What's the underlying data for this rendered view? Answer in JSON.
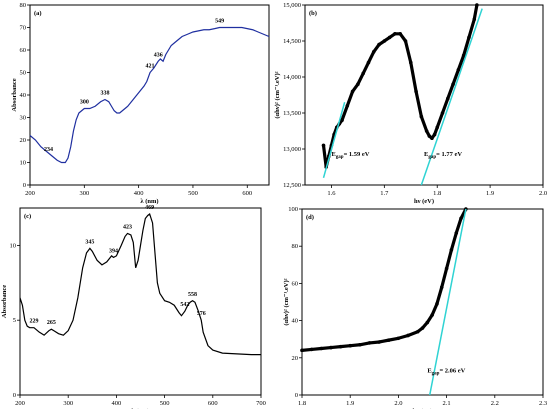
{
  "chart_data": [
    {
      "id": "a",
      "type": "line",
      "panel_label": "(a)",
      "xlabel": "λ (nm)",
      "ylabel": "Absorbance",
      "xlim": [
        200,
        640
      ],
      "ylim": [
        0,
        80
      ],
      "xticks": [
        200,
        300,
        400,
        500,
        600
      ],
      "yticks": [
        0,
        10,
        20,
        30,
        40,
        50,
        60,
        70,
        80
      ],
      "line_color": "#1f2fa0",
      "series": [
        {
          "x": [
            200,
            210,
            220,
            230,
            240,
            250,
            258,
            265,
            270,
            275,
            280,
            285,
            290,
            295,
            300,
            310,
            320,
            330,
            338,
            345,
            350,
            355,
            360,
            365,
            370,
            380,
            390,
            400,
            410,
            415,
            421,
            428,
            436,
            440,
            445,
            450,
            460,
            470,
            480,
            490,
            500,
            510,
            520,
            530,
            540,
            549,
            560,
            570,
            580,
            590,
            600,
            610,
            620,
            630,
            640
          ],
          "y": [
            22,
            20,
            17,
            15,
            13,
            11,
            10,
            10,
            12,
            17,
            24,
            29,
            32,
            33,
            34,
            34,
            35,
            37,
            38,
            37,
            35,
            33,
            32,
            32,
            33,
            35,
            38,
            41,
            44,
            46,
            50,
            52,
            55,
            56,
            55,
            58,
            62,
            64,
            66,
            67,
            68,
            68.5,
            69,
            69,
            69.5,
            70,
            70,
            70,
            70,
            70,
            69.5,
            69,
            68,
            67,
            66
          ]
        }
      ],
      "annotations": [
        {
          "x": 234,
          "y": 13,
          "text": "234"
        },
        {
          "x": 300,
          "y": 34,
          "text": "300"
        },
        {
          "x": 338,
          "y": 38,
          "text": "338"
        },
        {
          "x": 421,
          "y": 50,
          "text": "421"
        },
        {
          "x": 436,
          "y": 55,
          "text": "436"
        },
        {
          "x": 549,
          "y": 70,
          "text": "549"
        }
      ]
    },
    {
      "id": "b",
      "type": "scatter",
      "panel_label": "(b)",
      "xlabel": "hν (eV)",
      "ylabel": "(αhν)² (cm⁻¹.eV)²",
      "xlim": [
        1.55,
        2.0
      ],
      "ylim": [
        12500,
        15000
      ],
      "xticks": [
        1.6,
        1.7,
        1.8,
        1.9,
        2.0
      ],
      "xtick_labels": [
        "1.6",
        "1.7",
        "1.8",
        "1.9",
        "2.0"
      ],
      "yticks": [
        12500,
        13000,
        13500,
        14000,
        14500,
        15000
      ],
      "ytick_labels": [
        "12,500",
        "13,000",
        "13,500",
        "14,000",
        "14,500",
        "15,000"
      ],
      "point_color": "#000000",
      "fit_color": "#2fd3d3",
      "series": [
        {
          "x": [
            1.585,
            1.59,
            1.595,
            1.6,
            1.605,
            1.61,
            1.615,
            1.62,
            1.63,
            1.64,
            1.65,
            1.66,
            1.67,
            1.68,
            1.69,
            1.7,
            1.71,
            1.72,
            1.73,
            1.74,
            1.75,
            1.76,
            1.77,
            1.78,
            1.785,
            1.79,
            1.795,
            1.8,
            1.81,
            1.82,
            1.83,
            1.84,
            1.85,
            1.86,
            1.87,
            1.875
          ],
          "y": [
            13050,
            12750,
            12900,
            13050,
            13200,
            13300,
            13350,
            13400,
            13600,
            13800,
            13900,
            14050,
            14200,
            14350,
            14450,
            14500,
            14550,
            14600,
            14600,
            14500,
            14200,
            13800,
            13450,
            13250,
            13180,
            13150,
            13200,
            13300,
            13500,
            13700,
            13900,
            14100,
            14300,
            14550,
            14800,
            15000
          ]
        }
      ],
      "fits": [
        {
          "x": [
            1.585,
            1.625
          ],
          "y": [
            12600,
            13650
          ]
        },
        {
          "x": [
            1.77,
            1.885
          ],
          "y": [
            12500,
            14950
          ]
        }
      ],
      "annotations": [
        {
          "x": 1.6,
          "y": 12900,
          "text": "E_gap= 1.59 eV"
        },
        {
          "x": 1.775,
          "y": 12900,
          "text": "E_gap= 1.77 eV"
        }
      ]
    },
    {
      "id": "c",
      "type": "line",
      "panel_label": "(c)",
      "xlabel": "λ (nm)",
      "ylabel": "Absorbance",
      "xlim": [
        200,
        700
      ],
      "ylim": [
        0,
        12.5
      ],
      "xticks": [
        200,
        300,
        400,
        500,
        600,
        700
      ],
      "yticks": [
        0,
        5,
        10
      ],
      "line_color": "#000000",
      "series": [
        {
          "x": [
            200,
            205,
            210,
            215,
            220,
            229,
            240,
            250,
            260,
            265,
            270,
            280,
            290,
            300,
            310,
            320,
            330,
            338,
            345,
            350,
            360,
            370,
            380,
            390,
            394,
            400,
            410,
            418,
            423,
            430,
            435,
            440,
            445,
            450,
            455,
            460,
            465,
            469,
            475,
            480,
            485,
            490,
            500,
            510,
            520,
            530,
            535,
            542,
            548,
            553,
            558,
            563,
            570,
            576,
            580,
            590,
            600,
            620,
            650,
            680,
            700
          ],
          "y": [
            6.5,
            6.0,
            5.0,
            4.6,
            4.5,
            4.5,
            4.2,
            4.0,
            4.3,
            4.4,
            4.3,
            4.1,
            4.0,
            4.3,
            5.0,
            6.5,
            8.5,
            9.5,
            9.8,
            9.6,
            9.0,
            8.7,
            8.9,
            9.3,
            9.2,
            9.3,
            10.0,
            10.6,
            10.8,
            10.7,
            10.2,
            8.5,
            9.0,
            10.0,
            11.0,
            11.8,
            12.0,
            12.1,
            11.5,
            9.5,
            7.5,
            6.8,
            6.3,
            6.2,
            6.0,
            5.5,
            5.3,
            5.6,
            6.0,
            6.2,
            6.3,
            6.2,
            5.6,
            5.0,
            4.2,
            3.3,
            3.0,
            2.8,
            2.75,
            2.7,
            2.7
          ]
        }
      ],
      "annotations": [
        {
          "x": 229,
          "y": 4.5,
          "text": "229"
        },
        {
          "x": 265,
          "y": 4.4,
          "text": "265"
        },
        {
          "x": 345,
          "y": 9.8,
          "text": "345"
        },
        {
          "x": 394,
          "y": 9.2,
          "text": "394"
        },
        {
          "x": 423,
          "y": 10.8,
          "text": "423"
        },
        {
          "x": 469,
          "y": 12.1,
          "text": "469"
        },
        {
          "x": 542,
          "y": 5.6,
          "text": "542"
        },
        {
          "x": 558,
          "y": 6.3,
          "text": "558"
        },
        {
          "x": 576,
          "y": 5.0,
          "text": "576"
        }
      ]
    },
    {
      "id": "d",
      "type": "scatter",
      "panel_label": "(d)",
      "xlabel": "hν (eV)",
      "ylabel": "(αhν)² (cm⁻¹.eV)²",
      "xlim": [
        1.8,
        2.3
      ],
      "ylim": [
        0,
        100
      ],
      "xticks": [
        1.8,
        1.9,
        2.0,
        2.1,
        2.2,
        2.3
      ],
      "xtick_labels": [
        "1.8",
        "1.9",
        "2.0",
        "2.1",
        "2.2",
        "2.3"
      ],
      "yticks": [
        0,
        20,
        40,
        60,
        80,
        100
      ],
      "point_color": "#000000",
      "fit_color": "#2fd3d3",
      "series": [
        {
          "x": [
            1.8,
            1.82,
            1.84,
            1.86,
            1.88,
            1.9,
            1.92,
            1.94,
            1.96,
            1.98,
            2.0,
            2.02,
            2.04,
            2.05,
            2.06,
            2.07,
            2.08,
            2.09,
            2.1,
            2.11,
            2.12,
            2.13,
            2.14
          ],
          "y": [
            24,
            24.5,
            25,
            25.5,
            26,
            26.5,
            27,
            28,
            28.5,
            29.5,
            30.5,
            32,
            34,
            36,
            39,
            43,
            49,
            58,
            68,
            78,
            87,
            95,
            100
          ]
        }
      ],
      "fits": [
        {
          "x": [
            2.065,
            2.14
          ],
          "y": [
            0,
            100
          ]
        }
      ],
      "annotations": [
        {
          "x": 2.06,
          "y": 12,
          "text": "E_gap= 2.06 eV"
        }
      ]
    }
  ]
}
